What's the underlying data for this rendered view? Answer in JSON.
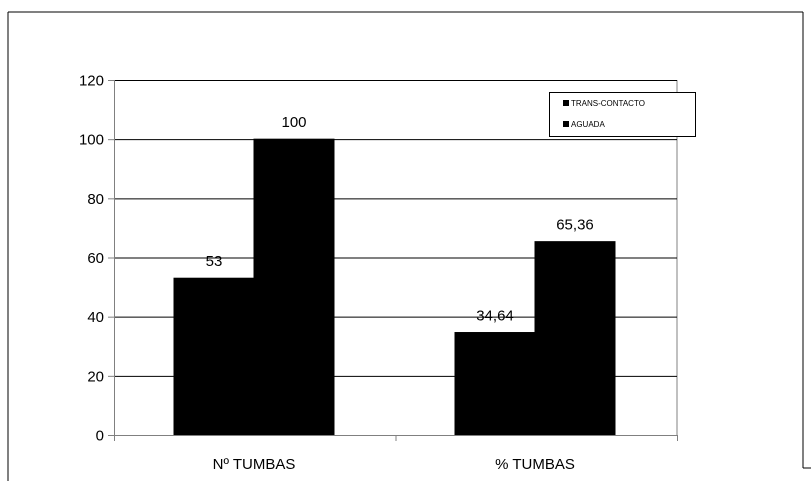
{
  "chart_data": {
    "type": "bar",
    "title": "",
    "xlabel": "",
    "ylabel": "",
    "categories": [
      "Nº TUMBAS",
      "% TUMBAS"
    ],
    "series": [
      {
        "name": "TRANS-CONTACTO",
        "values": [
          53,
          34.64
        ],
        "labels": [
          "53",
          "34,64"
        ]
      },
      {
        "name": "AGUADA",
        "values": [
          100,
          65.36
        ],
        "labels": [
          "100",
          "65,36"
        ]
      }
    ],
    "ylim": [
      0,
      120
    ],
    "yticks": [
      0,
      20,
      40,
      60,
      80,
      100,
      120
    ],
    "grid": true,
    "legend": "top-right",
    "colors": {
      "bars": "#000000",
      "grid": "#000000",
      "axis": "#808080",
      "background": "#ffffff"
    }
  }
}
